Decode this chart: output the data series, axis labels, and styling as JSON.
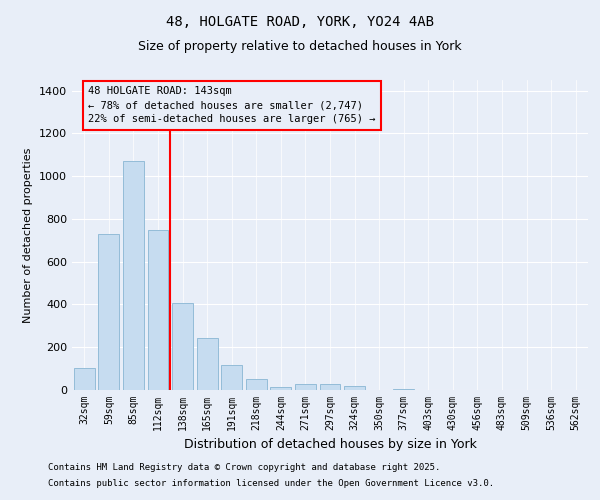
{
  "title_line1": "48, HOLGATE ROAD, YORK, YO24 4AB",
  "title_line2": "Size of property relative to detached houses in York",
  "xlabel": "Distribution of detached houses by size in York",
  "ylabel": "Number of detached properties",
  "categories": [
    "32sqm",
    "59sqm",
    "85sqm",
    "112sqm",
    "138sqm",
    "165sqm",
    "191sqm",
    "218sqm",
    "244sqm",
    "271sqm",
    "297sqm",
    "324sqm",
    "350sqm",
    "377sqm",
    "403sqm",
    "430sqm",
    "456sqm",
    "483sqm",
    "509sqm",
    "536sqm",
    "562sqm"
  ],
  "values": [
    105,
    730,
    1070,
    750,
    405,
    245,
    115,
    52,
    15,
    30,
    27,
    20,
    0,
    5,
    0,
    0,
    0,
    0,
    0,
    0,
    0
  ],
  "bar_color": "#c6dcf0",
  "bar_edgecolor": "#93bcd8",
  "bar_width": 0.85,
  "ylim": [
    0,
    1450
  ],
  "yticks": [
    0,
    200,
    400,
    600,
    800,
    1000,
    1200,
    1400
  ],
  "vline_color": "red",
  "vline_pos": 3.5,
  "annotation_text": "48 HOLGATE ROAD: 143sqm\n← 78% of detached houses are smaller (2,747)\n22% of semi-detached houses are larger (765) →",
  "annotation_box_edgecolor": "red",
  "bg_color": "#e8eef8",
  "grid_color": "white",
  "footer_line1": "Contains HM Land Registry data © Crown copyright and database right 2025.",
  "footer_line2": "Contains public sector information licensed under the Open Government Licence v3.0.",
  "title_fontsize": 10,
  "subtitle_fontsize": 9,
  "ylabel_fontsize": 8,
  "xlabel_fontsize": 9,
  "tick_fontsize": 7,
  "footer_fontsize": 6.5
}
